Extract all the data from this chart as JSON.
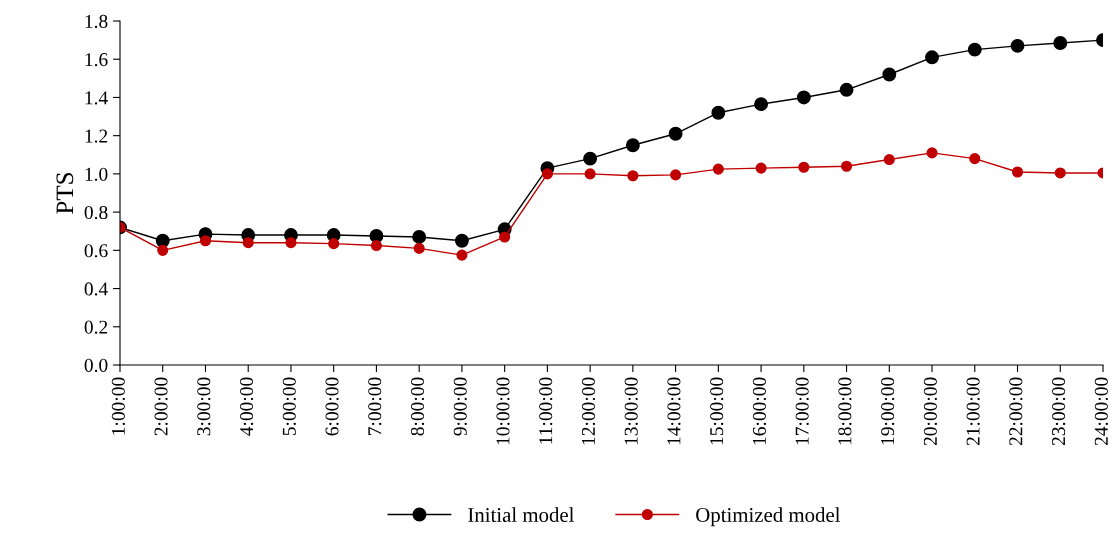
{
  "chart_data": {
    "type": "line",
    "ylabel": "PTS",
    "categories": [
      "1:00:00",
      "2:00:00",
      "3:00:00",
      "4:00:00",
      "5:00:00",
      "6:00:00",
      "7:00:00",
      "8:00:00",
      "9:00:00",
      "10:00:00",
      "11:00:00",
      "12:00:00",
      "13:00:00",
      "14:00:00",
      "15:00:00",
      "16:00:00",
      "17:00:00",
      "18:00:00",
      "19:00:00",
      "20:00:00",
      "21:00:00",
      "22:00:00",
      "23:00:00",
      "24:00:00"
    ],
    "series": [
      {
        "name": "Initial model",
        "color": "#000000",
        "values": [
          0.72,
          0.65,
          0.685,
          0.68,
          0.68,
          0.68,
          0.675,
          0.67,
          0.65,
          0.71,
          1.03,
          1.08,
          1.15,
          1.21,
          1.32,
          1.365,
          1.4,
          1.44,
          1.52,
          1.61,
          1.65,
          1.67,
          1.685,
          1.7
        ]
      },
      {
        "name": "Optimized model",
        "color": "#c00000",
        "values": [
          0.72,
          0.6,
          0.65,
          0.64,
          0.64,
          0.635,
          0.625,
          0.61,
          0.575,
          0.67,
          1.0,
          1.0,
          0.99,
          0.995,
          1.025,
          1.03,
          1.035,
          1.04,
          1.075,
          1.11,
          1.08,
          1.01,
          1.005,
          1.005
        ]
      }
    ],
    "ylim": [
      0,
      1.8
    ],
    "yticks": [
      {
        "value": 0,
        "label": "0.0"
      },
      {
        "value": 0.2,
        "label": "0.2"
      },
      {
        "value": 0.4,
        "label": "0.4"
      },
      {
        "value": 0.6,
        "label": "0.6"
      },
      {
        "value": 0.8,
        "label": "0.8"
      },
      {
        "value": 1.0,
        "label": "1.0"
      },
      {
        "value": 1.2,
        "label": "1.2"
      },
      {
        "value": 1.4,
        "label": "1.4"
      },
      {
        "value": 1.6,
        "label": "1.6"
      },
      {
        "value": 1.8,
        "label": "1.8"
      }
    ],
    "grid": false,
    "legend": "bottom",
    "marker": "circle",
    "line_style": "solid"
  }
}
